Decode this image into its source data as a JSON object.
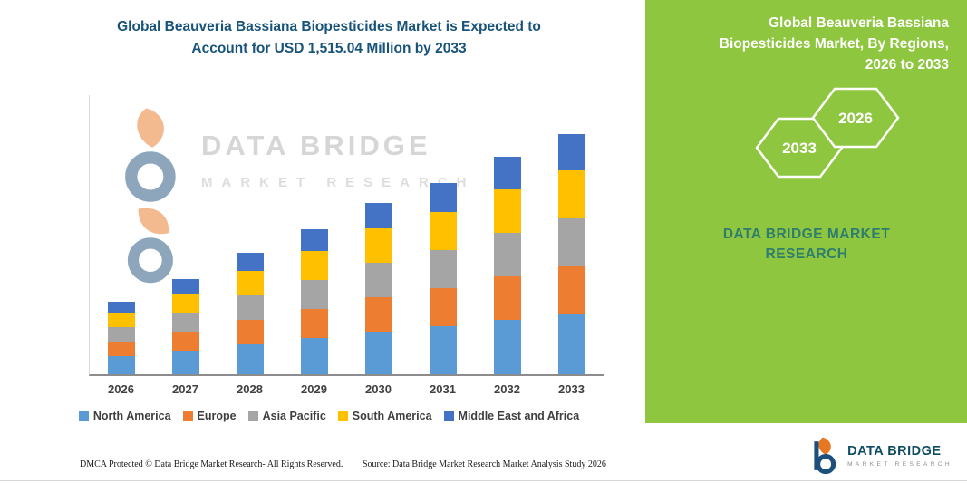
{
  "header": {
    "title_line1": "Global Beauveria Bassiana Biopesticides Market is Expected to",
    "title_line2": "Account for USD 1,515.04 Million by 2033"
  },
  "right_panel": {
    "title": "Global Beauveria Bassiana Biopesticides Market, By Regions, 2026 to 2033",
    "hexagons": [
      "2033",
      "2026"
    ],
    "brand_text": "DATA BRIDGE MARKET RESEARCH",
    "bg_color": "#8ec63f",
    "brand_text_color": "#2e7d6e"
  },
  "watermark": {
    "name": "DATA BRIDGE",
    "sub": "MARKET RESEARCH"
  },
  "footer": {
    "left": "DMCA Protected © Data Bridge Market Research-  All Rights Reserved.",
    "right": "Source: Data Bridge Market Research  Market Analysis Study 2026",
    "logo_name": "DATA BRIDGE",
    "logo_sub": "MARKET RESEARCH"
  },
  "chart_data": {
    "type": "bar",
    "stacked": true,
    "title": "Global Beauveria Bassiana Biopesticides Market is Expected to Account for USD 1,515.04 Million by 2033",
    "unit": "USD Million",
    "categories": [
      "2026",
      "2027",
      "2028",
      "2029",
      "2030",
      "2031",
      "2032",
      "2033"
    ],
    "series": [
      {
        "name": "North America",
        "color": "#5B9BD5",
        "values": [
          114,
          150,
          190,
          229,
          269,
          302,
          342,
          379
        ]
      },
      {
        "name": "Europe",
        "color": "#ED7D31",
        "values": [
          91,
          120,
          152,
          183,
          215,
          242,
          274,
          303
        ]
      },
      {
        "name": "Asia Pacific",
        "color": "#A5A5A5",
        "values": [
          91,
          120,
          152,
          183,
          215,
          242,
          274,
          303
        ]
      },
      {
        "name": "South America",
        "color": "#FFC000",
        "values": [
          91,
          120,
          152,
          183,
          215,
          242,
          274,
          303
        ]
      },
      {
        "name": "Middle East and Africa",
        "color": "#4472C4",
        "values": [
          68,
          90,
          114,
          137,
          161,
          182,
          206,
          227
        ]
      }
    ],
    "totals_estimated": [
      455,
      600,
      760,
      915,
      1075,
      1210,
      1370,
      1515
    ],
    "annotation": "2033 total = USD 1,515.04 Million",
    "ylim": [
      0,
      1600
    ],
    "gridlines": false,
    "legend_position": "bottom",
    "xlabel": "",
    "ylabel": ""
  }
}
